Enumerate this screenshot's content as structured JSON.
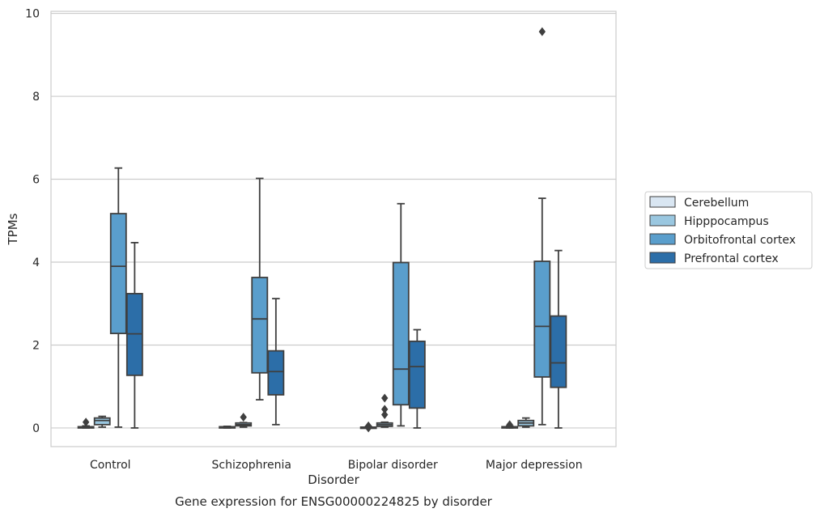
{
  "chart_data": {
    "type": "box",
    "caption": "Gene expression for ENSG00000224825 by disorder",
    "xlabel": "Disorder",
    "ylabel": "TPMs",
    "ylim": [
      -0.45,
      10.05
    ],
    "yticks": [
      0,
      2,
      4,
      6,
      8,
      10
    ],
    "grid": true,
    "legend_position": "right",
    "categories": [
      "Control",
      "Schizophrenia",
      "Bipolar disorder",
      "Major depression"
    ],
    "series": [
      {
        "name": "Cerebellum",
        "color": "#d9e6f2",
        "boxes": [
          {
            "whisker_low": 0.0,
            "q1": 0.0,
            "median": 0.02,
            "q3": 0.03,
            "whisker_high": 0.05,
            "outliers": [
              0.14
            ]
          },
          {
            "whisker_low": 0.0,
            "q1": 0.0,
            "median": 0.01,
            "q3": 0.03,
            "whisker_high": 0.04,
            "outliers": []
          },
          {
            "whisker_low": 0.0,
            "q1": 0.0,
            "median": 0.01,
            "q3": 0.02,
            "whisker_high": 0.03,
            "outliers": [
              0.05,
              0.0
            ]
          },
          {
            "whisker_low": 0.0,
            "q1": 0.0,
            "median": 0.02,
            "q3": 0.03,
            "whisker_high": 0.05,
            "outliers": [
              0.08
            ]
          }
        ]
      },
      {
        "name": "Hipppocampus",
        "color": "#9ac7e0",
        "boxes": [
          {
            "whisker_low": 0.02,
            "q1": 0.08,
            "median": 0.18,
            "q3": 0.24,
            "whisker_high": 0.28,
            "outliers": []
          },
          {
            "whisker_low": 0.02,
            "q1": 0.05,
            "median": 0.08,
            "q3": 0.12,
            "whisker_high": 0.13,
            "outliers": [
              0.26
            ]
          },
          {
            "whisker_low": 0.02,
            "q1": 0.04,
            "median": 0.08,
            "q3": 0.12,
            "whisker_high": 0.14,
            "outliers": [
              0.32,
              0.45,
              0.72
            ]
          },
          {
            "whisker_low": 0.02,
            "q1": 0.05,
            "median": 0.12,
            "q3": 0.18,
            "whisker_high": 0.24,
            "outliers": []
          }
        ]
      },
      {
        "name": "Orbitofrontal cortex",
        "color": "#5a9ecc",
        "boxes": [
          {
            "whisker_low": 0.02,
            "q1": 2.28,
            "median": 3.9,
            "q3": 5.17,
            "whisker_high": 6.27,
            "outliers": []
          },
          {
            "whisker_low": 0.68,
            "q1": 1.33,
            "median": 2.63,
            "q3": 3.63,
            "whisker_high": 6.02,
            "outliers": []
          },
          {
            "whisker_low": 0.05,
            "q1": 0.56,
            "median": 1.42,
            "q3": 3.99,
            "whisker_high": 5.41,
            "outliers": []
          },
          {
            "whisker_low": 0.08,
            "q1": 1.23,
            "median": 2.45,
            "q3": 4.02,
            "whisker_high": 5.54,
            "outliers": [
              9.56
            ]
          }
        ]
      },
      {
        "name": "Prefrontal cortex",
        "color": "#2c6ea8",
        "boxes": [
          {
            "whisker_low": 0.0,
            "q1": 1.27,
            "median": 2.27,
            "q3": 3.24,
            "whisker_high": 4.47,
            "outliers": []
          },
          {
            "whisker_low": 0.08,
            "q1": 0.8,
            "median": 1.36,
            "q3": 1.86,
            "whisker_high": 3.12,
            "outliers": []
          },
          {
            "whisker_low": 0.0,
            "q1": 0.48,
            "median": 1.48,
            "q3": 2.09,
            "whisker_high": 2.37,
            "outliers": []
          },
          {
            "whisker_low": 0.0,
            "q1": 0.98,
            "median": 1.57,
            "q3": 2.7,
            "whisker_high": 4.28,
            "outliers": []
          }
        ]
      }
    ]
  }
}
